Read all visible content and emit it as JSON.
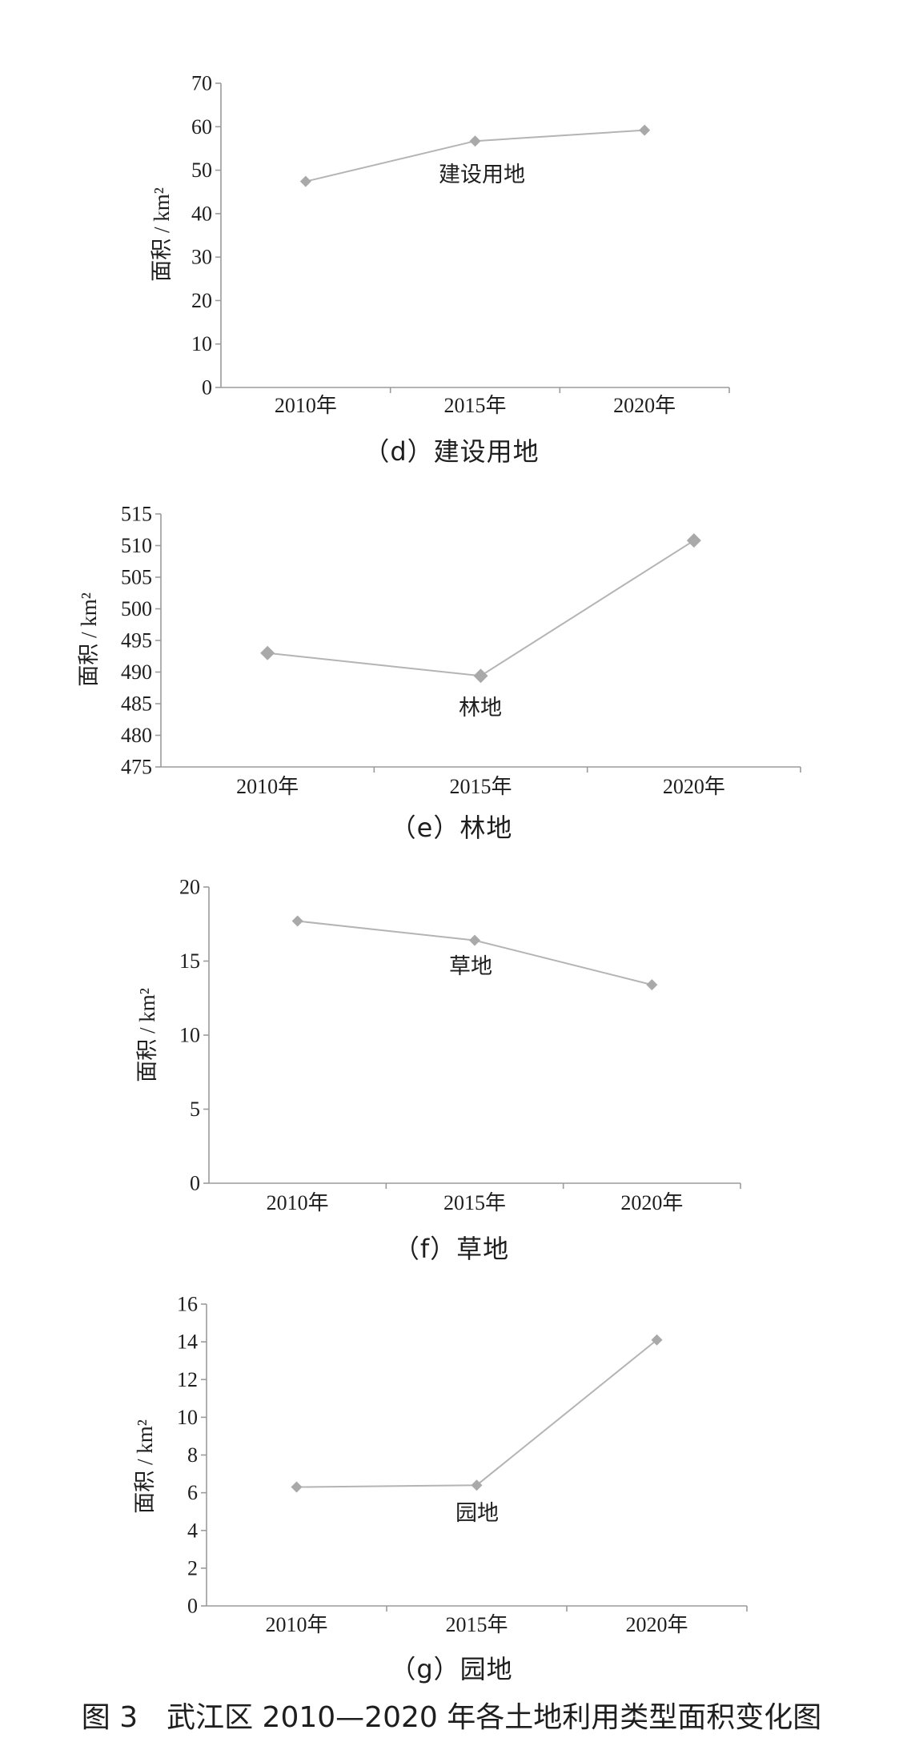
{
  "figure_caption": "图 3　武江区 2010—2020 年各土地利用类型面积变化图",
  "colors": {
    "axis": "#9b9b9b",
    "line": "#b4b4b4",
    "marker": "#a9a9a9",
    "text": "#1e1e1e"
  },
  "chart_data": [
    {
      "type": "line",
      "caption": "（d）建设用地",
      "xlabel": "",
      "ylabel": "面积 / km²",
      "categories": [
        "2010年",
        "2015年",
        "2020年"
      ],
      "series": [
        {
          "name": "建设用地",
          "values": [
            47.4,
            56.7,
            59.2
          ]
        }
      ],
      "ylim": [
        0,
        70
      ],
      "yticks": [
        0,
        10,
        20,
        30,
        40,
        50,
        60,
        70
      ],
      "grid": false,
      "legend": false
    },
    {
      "type": "line",
      "caption": "（e）林地",
      "xlabel": "",
      "ylabel": "面积 / km²",
      "categories": [
        "2010年",
        "2015年",
        "2020年"
      ],
      "series": [
        {
          "name": "林地",
          "values": [
            493.0,
            489.4,
            510.8
          ]
        }
      ],
      "ylim": [
        475,
        515
      ],
      "yticks": [
        475,
        480,
        485,
        490,
        495,
        500,
        505,
        510,
        515
      ],
      "grid": false,
      "legend": false
    },
    {
      "type": "line",
      "caption": "（f）草地",
      "xlabel": "",
      "ylabel": "面积 / km²",
      "categories": [
        "2010年",
        "2015年",
        "2020年"
      ],
      "series": [
        {
          "name": "草地",
          "values": [
            17.7,
            16.4,
            13.4
          ]
        }
      ],
      "ylim": [
        0,
        20
      ],
      "yticks": [
        0,
        5,
        10,
        15,
        20
      ],
      "grid": false,
      "legend": false
    },
    {
      "type": "line",
      "caption": "（g）园地",
      "xlabel": "",
      "ylabel": "面积 / km²",
      "categories": [
        "2010年",
        "2015年",
        "2020年"
      ],
      "series": [
        {
          "name": "园地",
          "values": [
            6.3,
            6.4,
            14.1
          ]
        }
      ],
      "ylim": [
        0,
        16
      ],
      "yticks": [
        0,
        2,
        4,
        6,
        8,
        10,
        12,
        14,
        16
      ],
      "grid": false,
      "legend": false
    }
  ]
}
